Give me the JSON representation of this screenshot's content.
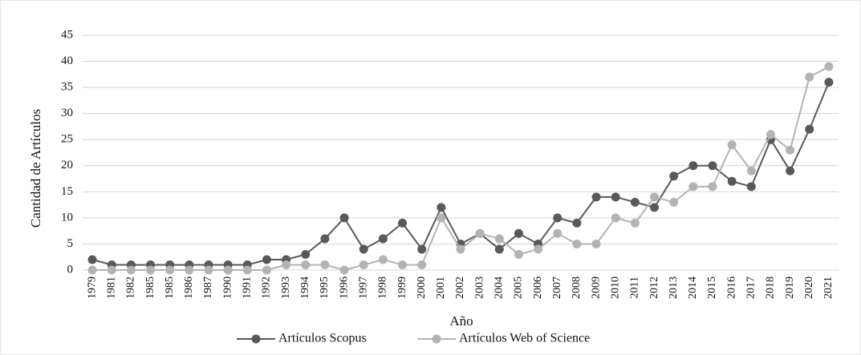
{
  "chart_data": {
    "type": "line",
    "x_label": "Año",
    "y_label": "Cantidad de Artículos",
    "categories": [
      "1979",
      "1981",
      "1982",
      "1985",
      "1985",
      "1986",
      "1987",
      "1990",
      "1991",
      "1992",
      "1993",
      "1994",
      "1995",
      "1996",
      "1997",
      "1998",
      "1999",
      "2000",
      "2001",
      "2002",
      "2003",
      "2004",
      "2005",
      "2006",
      "2007",
      "2008",
      "2009",
      "2010",
      "2011",
      "2012",
      "2013",
      "2014",
      "2015",
      "2016",
      "2017",
      "2018",
      "2019",
      "2020",
      "2021"
    ],
    "series": [
      {
        "name": "Artículos Scopus",
        "color": "#595959",
        "values": [
          2,
          1,
          1,
          1,
          1,
          1,
          1,
          1,
          1,
          2,
          2,
          3,
          6,
          10,
          4,
          6,
          9,
          4,
          12,
          5,
          7,
          4,
          7,
          5,
          10,
          9,
          14,
          14,
          13,
          12,
          18,
          20,
          20,
          17,
          16,
          25,
          19,
          27,
          36
        ]
      },
      {
        "name": "Artículos Web of Science",
        "color": "#b3b3b3",
        "values": [
          0,
          0,
          0,
          0,
          0,
          0,
          0,
          0,
          0,
          0,
          1,
          1,
          1,
          0,
          1,
          2,
          1,
          1,
          10,
          4,
          7,
          6,
          3,
          4,
          7,
          5,
          5,
          10,
          9,
          14,
          13,
          16,
          16,
          24,
          19,
          26,
          23,
          37,
          39
        ]
      }
    ],
    "ylim": [
      0,
      45
    ],
    "yticks": [
      0,
      5,
      10,
      15,
      20,
      25,
      30,
      35,
      40,
      45
    ],
    "grid": true,
    "legend": "bottom"
  }
}
